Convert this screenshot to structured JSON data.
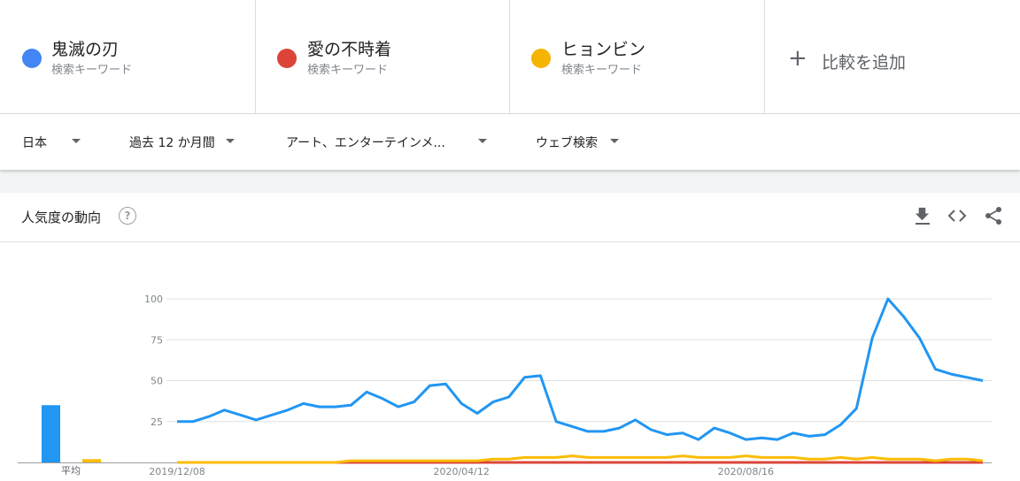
{
  "terms": [
    {
      "name": "鬼滅の刃",
      "sub": "検索キーワード",
      "color": "#4285f4"
    },
    {
      "name": "愛の不時着",
      "sub": "検索キーワード",
      "color": "#db4437"
    },
    {
      "name": "ヒョンビン",
      "sub": "検索キーワード",
      "color": "#f4b400"
    }
  ],
  "add_compare": {
    "icon": "plus-icon",
    "label": "比較を追加"
  },
  "filters": {
    "region": "日本",
    "period": "過去 12 か月間",
    "category": "アート、エンターテインメ...",
    "search_type": "ウェブ検索"
  },
  "card": {
    "title": "人気度の動向",
    "help": "?",
    "tools": [
      "download-icon",
      "embed-icon",
      "share-icon"
    ]
  },
  "chart_data": {
    "type": "line",
    "ylim": [
      0,
      100
    ],
    "yticks": [
      "100",
      "75",
      "50",
      "25"
    ],
    "x_tick_labels": [
      "2019/12/08",
      "2020/04/12",
      "2020/08/16"
    ],
    "x_tick_index": [
      0,
      18,
      36
    ],
    "points": 52,
    "avg_label": "平均",
    "averages": [
      35,
      0,
      2
    ],
    "series": [
      {
        "name": "鬼滅の刃",
        "color": "#2196f3",
        "values": [
          25,
          25,
          28,
          32,
          29,
          26,
          29,
          32,
          36,
          34,
          34,
          35,
          43,
          39,
          34,
          37,
          47,
          48,
          36,
          30,
          37,
          40,
          52,
          53,
          25,
          22,
          19,
          19,
          21,
          26,
          20,
          17,
          18,
          14,
          21,
          18,
          14,
          15,
          14,
          18,
          16,
          17,
          23,
          33,
          76,
          100,
          89,
          76,
          57,
          54,
          52,
          50
        ]
      },
      {
        "name": "愛の不時着",
        "color": "#db4437",
        "values": [
          0,
          0,
          0,
          0,
          0,
          0,
          0,
          0,
          0,
          0,
          0,
          0,
          0,
          0,
          0,
          0,
          0,
          0,
          0,
          0,
          0,
          0,
          0,
          0,
          0,
          0,
          0,
          0,
          0,
          0,
          0,
          0,
          0,
          0,
          0,
          0,
          0,
          0,
          0,
          0,
          0,
          0,
          0,
          0,
          0,
          0,
          0,
          0,
          0,
          0,
          0,
          0
        ]
      },
      {
        "name": "ヒョンビン",
        "color": "#fbbc04",
        "values": [
          0,
          0,
          0,
          0,
          0,
          0,
          0,
          0,
          0,
          0,
          0,
          1,
          1,
          1,
          1,
          1,
          1,
          1,
          1,
          1,
          2,
          2,
          3,
          3,
          3,
          4,
          3,
          3,
          3,
          3,
          3,
          3,
          4,
          3,
          3,
          3,
          4,
          3,
          3,
          3,
          2,
          2,
          3,
          2,
          3,
          2,
          2,
          2,
          1,
          2,
          2,
          1
        ]
      }
    ]
  }
}
